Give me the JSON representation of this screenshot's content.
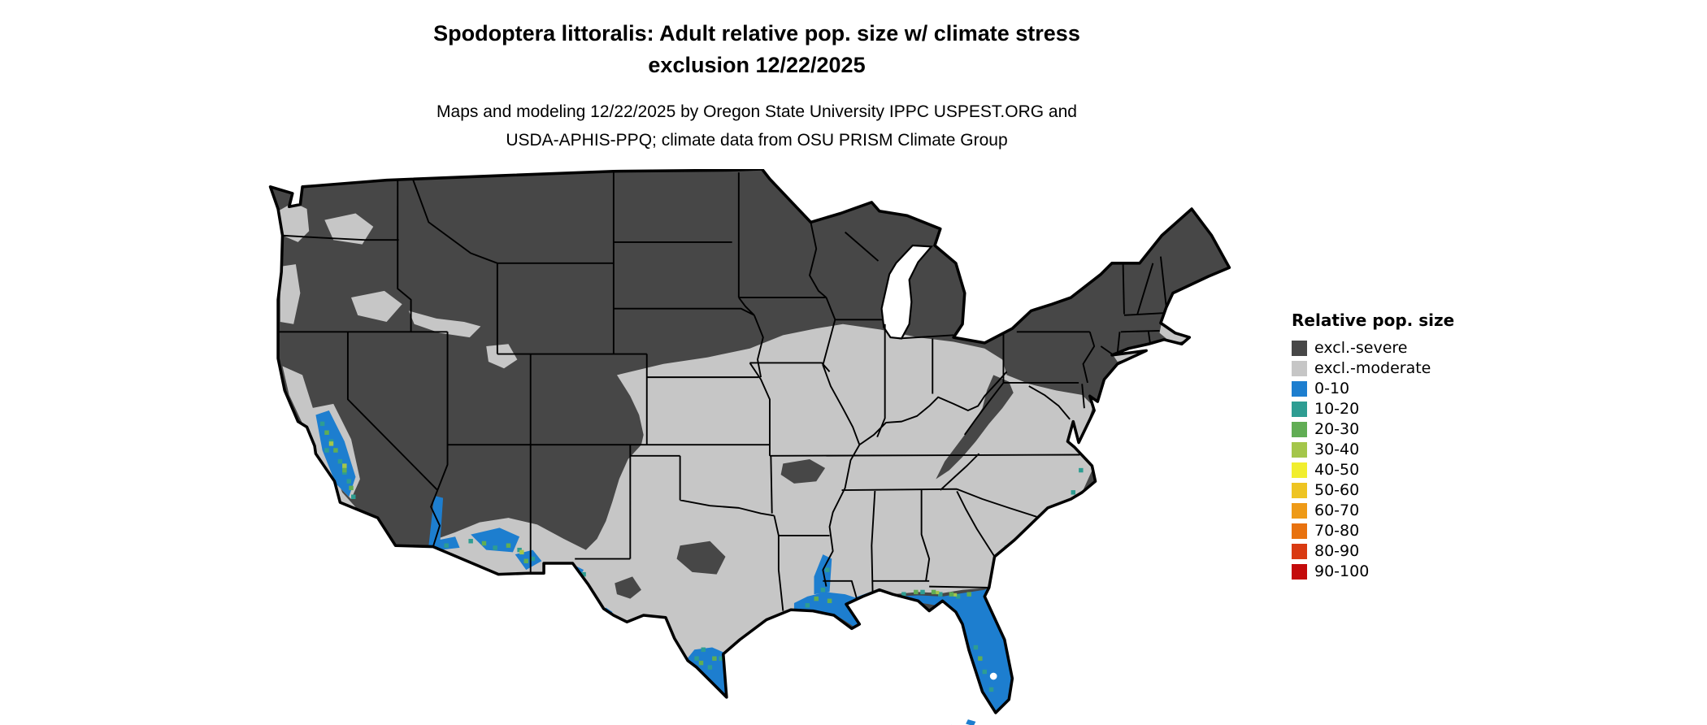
{
  "title": {
    "line1": "Spodoptera littoralis: Adult relative pop. size w/ climate stress",
    "line2": "exclusion 12/22/2025"
  },
  "subtitle": {
    "line1": "Maps and modeling 12/22/2025 by Oregon State University IPPC USPEST.ORG and",
    "line2": "USDA-APHIS-PPQ; climate data from OSU PRISM Climate Group"
  },
  "legend": {
    "title": "Relative pop. size",
    "items": [
      {
        "label": "excl.-severe",
        "color": "#474747"
      },
      {
        "label": "excl.-moderate",
        "color": "#c6c6c6"
      },
      {
        "label": "0-10",
        "color": "#1d7ecf"
      },
      {
        "label": "10-20",
        "color": "#2e9d92"
      },
      {
        "label": "20-30",
        "color": "#61ad54"
      },
      {
        "label": "30-40",
        "color": "#a4c64a"
      },
      {
        "label": "40-50",
        "color": "#f1ee2f"
      },
      {
        "label": "50-60",
        "color": "#eec422"
      },
      {
        "label": "60-70",
        "color": "#ee9a17"
      },
      {
        "label": "70-80",
        "color": "#e8720f"
      },
      {
        "label": "80-90",
        "color": "#d93a12"
      },
      {
        "label": "90-100",
        "color": "#c40b0b"
      }
    ]
  },
  "map": {
    "region": "Continental United States",
    "water_color": "#ffffff",
    "border_color": "#000000"
  }
}
